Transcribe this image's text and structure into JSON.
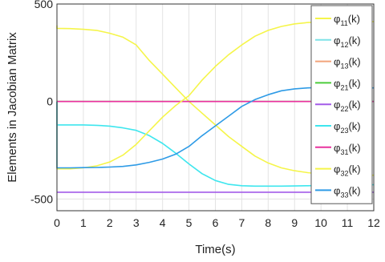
{
  "chart_data": {
    "type": "line",
    "title": "",
    "xlabel": "Time(s)",
    "ylabel": "Elements in Jacobian Matrix",
    "xlim": [
      0,
      12
    ],
    "ylim": [
      -560,
      500
    ],
    "xticks": [
      0,
      1,
      2,
      3,
      4,
      5,
      6,
      7,
      8,
      9,
      10,
      11,
      12
    ],
    "yticks": [
      500,
      0,
      -500
    ],
    "grid": true,
    "legend_position": "right",
    "x": [
      0,
      0.5,
      1,
      1.5,
      2,
      2.5,
      3,
      3.5,
      4,
      4.5,
      5,
      5.5,
      6,
      6.5,
      7,
      7.5,
      8,
      8.5,
      9,
      9.5,
      10,
      10.5,
      11,
      11.5,
      12
    ],
    "series": [
      {
        "name": "φ11(k)",
        "color": "#f5f54a",
        "initial": 390,
        "values": [
          375,
          374,
          370,
          365,
          350,
          330,
          290,
          210,
          140,
          70,
          0,
          -60,
          -120,
          -180,
          -230,
          -280,
          -315,
          -340,
          -355,
          -365,
          -372,
          -375,
          -377,
          -378,
          -378
        ]
      },
      {
        "name": "φ12(k)",
        "color": "#7fe3e8",
        "initial": 0,
        "values": [
          0,
          0,
          0,
          0,
          0,
          0,
          0,
          0,
          0,
          0,
          0,
          0,
          0,
          0,
          0,
          0,
          0,
          0,
          0,
          0,
          0,
          0,
          0,
          0,
          0
        ]
      },
      {
        "name": "φ13(k)",
        "color": "#f2a37a",
        "initial": 0,
        "values": [
          0,
          0,
          0,
          0,
          0,
          0,
          0,
          0,
          0,
          0,
          0,
          0,
          0,
          0,
          0,
          0,
          0,
          0,
          0,
          0,
          0,
          0,
          0,
          0,
          0
        ]
      },
      {
        "name": "φ21(k)",
        "color": "#4ccc3c",
        "initial": 0,
        "values": [
          0,
          0,
          0,
          0,
          0,
          0,
          0,
          0,
          0,
          0,
          0,
          0,
          0,
          0,
          0,
          0,
          0,
          0,
          0,
          0,
          0,
          0,
          0,
          0,
          0
        ]
      },
      {
        "name": "φ22(k)",
        "color": "#a35ce8",
        "initial": -465,
        "values": [
          -465,
          -465,
          -465,
          -465,
          -465,
          -465,
          -465,
          -465,
          -465,
          -465,
          -465,
          -465,
          -465,
          -465,
          -465,
          -465,
          -465,
          -465,
          -465,
          -465,
          -465,
          -465,
          -465,
          -465,
          -465
        ]
      },
      {
        "name": "φ23(k)",
        "color": "#3ee6ee",
        "initial": 0,
        "values": [
          -120,
          -120,
          -120,
          -122,
          -126,
          -135,
          -148,
          -175,
          -215,
          -265,
          -320,
          -370,
          -405,
          -425,
          -432,
          -434,
          -434,
          -434,
          -433,
          -432,
          -430,
          -428,
          -427,
          -427,
          -427
        ]
      },
      {
        "name": "φ31(k)",
        "color": "#e8329e",
        "initial": 0,
        "values": [
          0,
          0,
          0,
          0,
          0,
          0,
          0,
          0,
          0,
          0,
          0,
          0,
          0,
          0,
          0,
          0,
          0,
          0,
          0,
          0,
          0,
          0,
          0,
          0,
          0
        ]
      },
      {
        "name": "φ32(k)",
        "color": "#f5f54a",
        "initial": 0,
        "values": [
          -345,
          -345,
          -340,
          -330,
          -310,
          -275,
          -220,
          -150,
          -80,
          -20,
          30,
          110,
          180,
          240,
          290,
          335,
          365,
          385,
          398,
          405,
          408,
          409,
          410,
          410,
          410
        ]
      },
      {
        "name": "φ33(k)",
        "color": "#2e9be6",
        "initial": 0,
        "values": [
          -340,
          -340,
          -339,
          -338,
          -336,
          -333,
          -325,
          -312,
          -295,
          -270,
          -230,
          -175,
          -125,
          -75,
          -25,
          10,
          35,
          55,
          65,
          70,
          72,
          72,
          71,
          70,
          70
        ]
      }
    ]
  }
}
